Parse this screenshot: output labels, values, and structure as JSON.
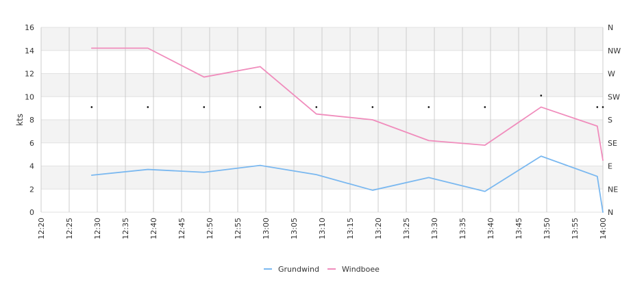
{
  "chart_data": {
    "type": "line",
    "ylabel": "kts",
    "ylim": [
      0,
      16
    ],
    "yticks": [
      "0",
      "2",
      "4",
      "6",
      "8",
      "10",
      "12",
      "14",
      "16"
    ],
    "y2ticks": [
      "N",
      "NE",
      "E",
      "SE",
      "S",
      "SW",
      "W",
      "NW",
      "N"
    ],
    "xticks": [
      "12:20",
      "12:25",
      "12:30",
      "12:35",
      "12:40",
      "12:45",
      "12:50",
      "12:55",
      "13:00",
      "13:05",
      "13:10",
      "13:15",
      "13:20",
      "13:25",
      "13:30",
      "13:35",
      "13:40",
      "13:45",
      "13:50",
      "13:55",
      "14:00"
    ],
    "xlim": [
      "12:20",
      "14:00"
    ],
    "grid": true,
    "legend_position": "bottom",
    "series": [
      {
        "name": "Grundwind",
        "color": "#7ab8f0",
        "points": [
          [
            "12:29",
            3.2
          ],
          [
            "12:39",
            3.7
          ],
          [
            "12:49",
            3.45
          ],
          [
            "12:59",
            4.05
          ],
          [
            "13:09",
            3.25
          ],
          [
            "13:19",
            1.9
          ],
          [
            "13:29",
            3.0
          ],
          [
            "13:39",
            1.8
          ],
          [
            "13:49",
            4.85
          ],
          [
            "13:59",
            3.1
          ],
          [
            "14:00",
            0.0
          ]
        ]
      },
      {
        "name": "Windboee",
        "color": "#f08cbc",
        "points": [
          [
            "12:29",
            14.2
          ],
          [
            "12:39",
            14.2
          ],
          [
            "12:49",
            11.7
          ],
          [
            "12:59",
            12.6
          ],
          [
            "13:09",
            8.5
          ],
          [
            "13:19",
            8.0
          ],
          [
            "13:29",
            6.2
          ],
          [
            "13:39",
            5.8
          ],
          [
            "13:49",
            9.1
          ],
          [
            "13:59",
            7.45
          ],
          [
            "14:00",
            4.5
          ]
        ]
      }
    ],
    "direction_markers": [
      [
        "12:29",
        9.1
      ],
      [
        "12:39",
        9.1
      ],
      [
        "12:49",
        9.1
      ],
      [
        "12:59",
        9.1
      ],
      [
        "13:09",
        9.1
      ],
      [
        "13:19",
        9.1
      ],
      [
        "13:29",
        9.1
      ],
      [
        "13:39",
        9.1
      ],
      [
        "13:49",
        10.1
      ],
      [
        "13:59",
        9.1
      ],
      [
        "14:00",
        9.1
      ]
    ]
  }
}
